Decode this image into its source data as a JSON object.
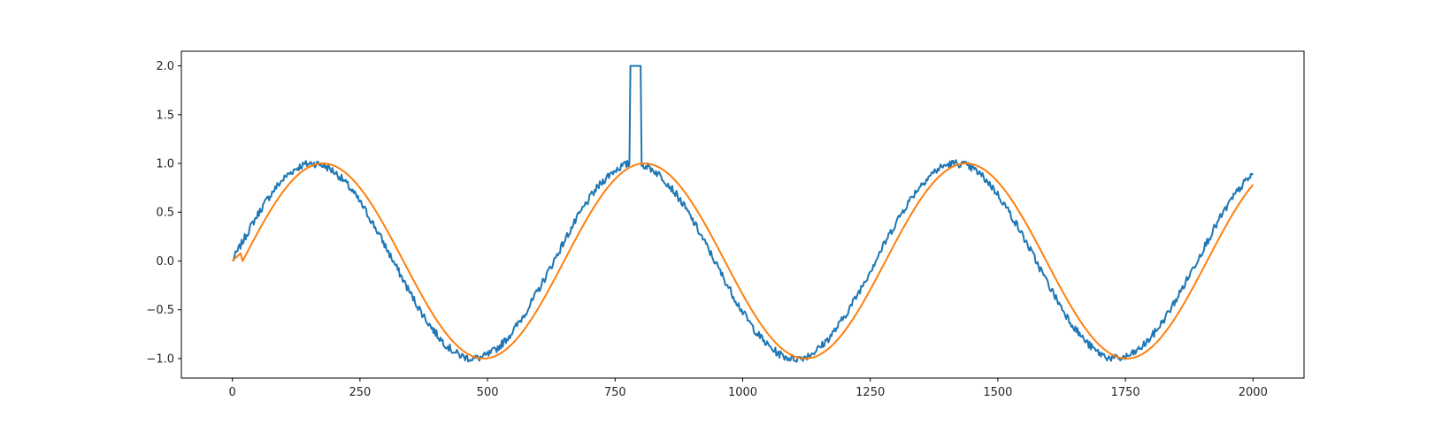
{
  "chart_data": {
    "type": "line",
    "title": "",
    "xlabel": "",
    "ylabel": "",
    "xlim": [
      -100,
      2100
    ],
    "ylim": [
      -1.2,
      2.15
    ],
    "grid": false,
    "x_ticks": [
      0,
      250,
      500,
      750,
      1000,
      1250,
      1500,
      1750,
      2000
    ],
    "x_tick_labels": [
      "0",
      "250",
      "500",
      "750",
      "1000",
      "1250",
      "1500",
      "1750",
      "2000"
    ],
    "y_ticks": [
      -1.0,
      -0.5,
      0.0,
      0.5,
      1.0,
      1.5,
      2.0
    ],
    "y_tick_labels": [
      "−1.0",
      "−0.5",
      "0.0",
      "0.5",
      "1.0",
      "1.5",
      "2.0"
    ],
    "series": [
      {
        "color": "#1f77b4",
        "description_points_x": [
          0,
          50,
          100,
          150,
          200,
          250,
          300,
          350,
          400,
          450,
          500,
          550,
          600,
          650,
          700,
          750,
          780,
          781,
          800,
          801,
          850,
          900,
          950,
          1000,
          1050,
          1100,
          1150,
          1200,
          1250,
          1300,
          1350,
          1400,
          1450,
          1500,
          1550,
          1600,
          1650,
          1700,
          1750,
          1800,
          1850,
          1900,
          1950,
          2000
        ],
        "values": [
          0.0,
          0.48,
          0.84,
          1.0,
          0.91,
          0.6,
          0.14,
          -0.35,
          -0.76,
          -0.98,
          -0.96,
          -0.71,
          -0.28,
          0.22,
          0.66,
          0.95,
          1.0,
          2.0,
          2.0,
          1.0,
          0.86,
          0.5,
          0.02,
          -0.47,
          -0.84,
          -1.0,
          -0.91,
          -0.59,
          -0.13,
          0.37,
          0.77,
          0.99,
          0.95,
          0.7,
          0.27,
          -0.23,
          -0.67,
          -0.95,
          -0.99,
          -0.83,
          -0.45,
          0.05,
          0.53,
          0.92
        ],
        "noise_amplitude": 0.04,
        "period": 630,
        "spike": {
          "x_start": 780,
          "x_end": 800,
          "value": 2.0
        }
      },
      {
        "color": "#ff7f0e",
        "period": 630,
        "phase_lag": 20,
        "values_at_ticks": [
          0.0,
          0.48,
          0.84,
          0.99,
          0.93,
          0.62,
          0.18,
          -0.31,
          -0.73,
          -0.97,
          -0.97,
          -0.74,
          -0.32,
          0.18,
          0.62,
          0.93,
          0.99,
          0.84,
          0.48,
          0.0
        ]
      }
    ]
  }
}
